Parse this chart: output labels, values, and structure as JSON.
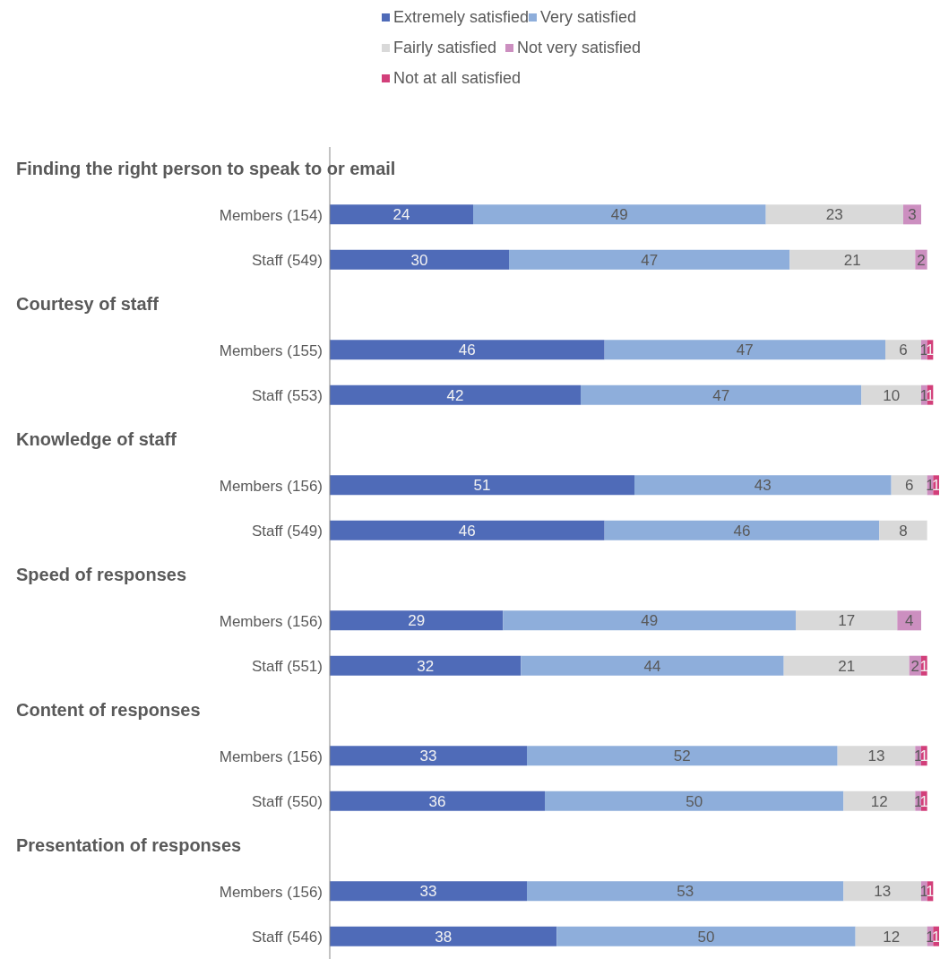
{
  "chart_data": {
    "type": "bar",
    "orientation": "horizontal",
    "stacked": true,
    "data_labels": true,
    "legend": "top",
    "annotations": [
      "Finding the right person to speak to or email",
      "Courtesy of staff",
      "Knowledge of staff",
      "Speed of responses",
      "Content of responses",
      "Presentation of responses"
    ],
    "categories": [
      null,
      "Members (154)",
      "Staff (549)",
      null,
      "Members (155)",
      "Staff (553)",
      null,
      "Members (156)",
      "Staff (549)",
      null,
      "Members (156)",
      "Staff (551)",
      null,
      "Members (156)",
      "Staff (550)",
      null,
      "Members (156)",
      "Staff (546)"
    ],
    "series": [
      {
        "name": "Extremely satisfied",
        "color": "#4f6bb8",
        "values": [
          null,
          24,
          30,
          null,
          46,
          42,
          null,
          51,
          46,
          null,
          29,
          32,
          null,
          33,
          36,
          null,
          33,
          38
        ]
      },
      {
        "name": "Very satisfied",
        "color": "#8eaedb",
        "values": [
          null,
          49,
          47,
          null,
          47,
          47,
          null,
          43,
          46,
          null,
          49,
          44,
          null,
          52,
          50,
          null,
          53,
          50
        ]
      },
      {
        "name": "Fairly satisfied",
        "color": "#d9d9d9",
        "values": [
          null,
          23,
          21,
          null,
          6,
          10,
          null,
          6,
          8,
          null,
          17,
          21,
          null,
          13,
          12,
          null,
          13,
          12
        ]
      },
      {
        "name": "Not very satisfied",
        "color": "#cc8fc0",
        "values": [
          null,
          3,
          2,
          null,
          1,
          1,
          null,
          1,
          null,
          null,
          4,
          2,
          null,
          1,
          1,
          null,
          1,
          1
        ]
      },
      {
        "name": "Not at all satisfied",
        "color": "#d23f7a",
        "values": [
          null,
          null,
          null,
          null,
          1,
          1,
          null,
          1,
          null,
          null,
          null,
          1,
          null,
          1,
          1,
          null,
          1,
          1
        ]
      }
    ]
  }
}
